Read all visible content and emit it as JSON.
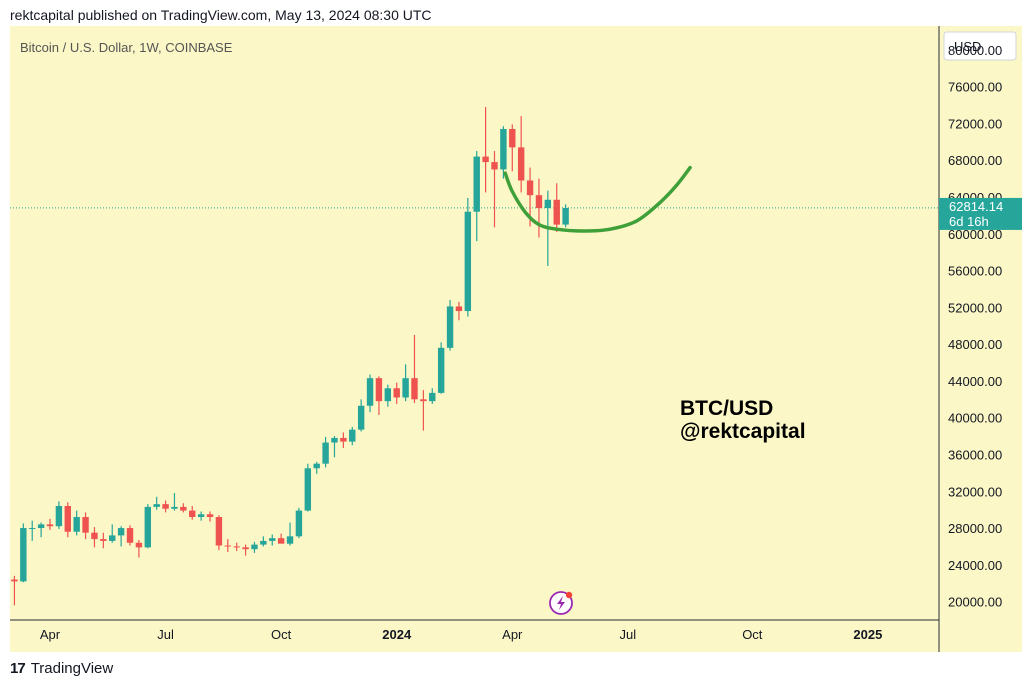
{
  "header": {
    "text": "rektcapital published on TradingView.com, May 13, 2024 08:30 UTC"
  },
  "footer": {
    "brand": "TradingView"
  },
  "colors": {
    "background": "#fbf7c6",
    "up": "#26a69a",
    "down": "#ef5350",
    "curve": "#3fa03a",
    "price_tag": "#26a69a",
    "grid_text": "#131722"
  },
  "chart_data": {
    "type": "candlestick",
    "title": "Bitcoin / U.S. Dollar, 1W, COINBASE",
    "currency_label": "USD",
    "y_ticks": [
      "80000.00",
      "76000.00",
      "72000.00",
      "68000.00",
      "64000.00",
      "60000.00",
      "56000.00",
      "52000.00",
      "48000.00",
      "44000.00",
      "40000.00",
      "36000.00",
      "32000.00",
      "28000.00",
      "24000.00",
      "20000.00"
    ],
    "y_tick_values": [
      80000,
      76000,
      72000,
      68000,
      64000,
      60000,
      56000,
      52000,
      48000,
      44000,
      40000,
      36000,
      32000,
      28000,
      24000,
      20000
    ],
    "ylim": [
      18000,
      82600
    ],
    "x_labels": [
      "Apr",
      "Jul",
      "Oct",
      "2024",
      "Apr",
      "Jul",
      "Oct",
      "2025"
    ],
    "x_label_weeks": [
      4,
      17,
      30,
      43,
      56,
      69,
      83,
      96
    ],
    "week_range": [
      -0.5,
      104
    ],
    "current_price": {
      "label": "62814.14",
      "value": 62814.14,
      "countdown": "6d 16h"
    },
    "annotation": {
      "line1": "BTC/USD",
      "line2": "@rektcapital"
    },
    "projection_curve": [
      {
        "week": 55.2,
        "price": 66600
      },
      {
        "week": 56,
        "price": 64600
      },
      {
        "week": 57.5,
        "price": 62300
      },
      {
        "week": 59,
        "price": 61000
      },
      {
        "week": 61,
        "price": 60500
      },
      {
        "week": 64,
        "price": 60300
      },
      {
        "week": 67,
        "price": 60500
      },
      {
        "week": 70,
        "price": 61400
      },
      {
        "week": 72.5,
        "price": 63300
      },
      {
        "week": 74.5,
        "price": 65300
      },
      {
        "week": 76,
        "price": 67200
      }
    ],
    "candles": [
      {
        "o": 22400,
        "h": 22800,
        "l": 19600,
        "c": 22200
      },
      {
        "o": 22200,
        "h": 28500,
        "l": 22100,
        "c": 28000
      },
      {
        "o": 28000,
        "h": 28800,
        "l": 26600,
        "c": 28000
      },
      {
        "o": 28000,
        "h": 28600,
        "l": 27000,
        "c": 28400
      },
      {
        "o": 28400,
        "h": 29000,
        "l": 27800,
        "c": 28200
      },
      {
        "o": 28200,
        "h": 30900,
        "l": 27900,
        "c": 30400
      },
      {
        "o": 30400,
        "h": 30800,
        "l": 27000,
        "c": 27600
      },
      {
        "o": 27600,
        "h": 29900,
        "l": 27200,
        "c": 29200
      },
      {
        "o": 29200,
        "h": 29700,
        "l": 26800,
        "c": 27500
      },
      {
        "o": 27500,
        "h": 28100,
        "l": 25900,
        "c": 26800
      },
      {
        "o": 26800,
        "h": 27500,
        "l": 25800,
        "c": 26600
      },
      {
        "o": 26600,
        "h": 28400,
        "l": 26400,
        "c": 27200
      },
      {
        "o": 27200,
        "h": 28200,
        "l": 26000,
        "c": 28000
      },
      {
        "o": 28000,
        "h": 28300,
        "l": 26100,
        "c": 26400
      },
      {
        "o": 26400,
        "h": 26700,
        "l": 24800,
        "c": 25900
      },
      {
        "o": 25900,
        "h": 30600,
        "l": 25800,
        "c": 30300
      },
      {
        "o": 30300,
        "h": 31400,
        "l": 30000,
        "c": 30600
      },
      {
        "o": 30600,
        "h": 31000,
        "l": 29700,
        "c": 30100
      },
      {
        "o": 30100,
        "h": 31800,
        "l": 29900,
        "c": 30300
      },
      {
        "o": 30300,
        "h": 30700,
        "l": 29700,
        "c": 29900
      },
      {
        "o": 29900,
        "h": 30400,
        "l": 28900,
        "c": 29200
      },
      {
        "o": 29200,
        "h": 29800,
        "l": 28800,
        "c": 29500
      },
      {
        "o": 29500,
        "h": 29800,
        "l": 28700,
        "c": 29200
      },
      {
        "o": 29200,
        "h": 29400,
        "l": 25600,
        "c": 26100
      },
      {
        "o": 26100,
        "h": 26800,
        "l": 25400,
        "c": 26000
      },
      {
        "o": 26000,
        "h": 26400,
        "l": 25500,
        "c": 25900
      },
      {
        "o": 25900,
        "h": 26200,
        "l": 25000,
        "c": 25700
      },
      {
        "o": 25700,
        "h": 26500,
        "l": 25300,
        "c": 26200
      },
      {
        "o": 26200,
        "h": 27100,
        "l": 26000,
        "c": 26600
      },
      {
        "o": 26600,
        "h": 27300,
        "l": 26100,
        "c": 26900
      },
      {
        "o": 26900,
        "h": 27400,
        "l": 26500,
        "c": 26300
      },
      {
        "o": 26300,
        "h": 28600,
        "l": 26100,
        "c": 27100
      },
      {
        "o": 27100,
        "h": 30200,
        "l": 26900,
        "c": 29900
      },
      {
        "o": 29900,
        "h": 35000,
        "l": 29800,
        "c": 34500
      },
      {
        "o": 34500,
        "h": 35200,
        "l": 33900,
        "c": 35000
      },
      {
        "o": 35000,
        "h": 37900,
        "l": 34600,
        "c": 37300
      },
      {
        "o": 37300,
        "h": 38000,
        "l": 35700,
        "c": 37800
      },
      {
        "o": 37800,
        "h": 38400,
        "l": 36700,
        "c": 37400
      },
      {
        "o": 37400,
        "h": 39000,
        "l": 37000,
        "c": 38700
      },
      {
        "o": 38700,
        "h": 42000,
        "l": 38500,
        "c": 41300
      },
      {
        "o": 41300,
        "h": 44700,
        "l": 40600,
        "c": 44300
      },
      {
        "o": 44300,
        "h": 44500,
        "l": 40300,
        "c": 41800
      },
      {
        "o": 41800,
        "h": 43600,
        "l": 41200,
        "c": 43200
      },
      {
        "o": 43200,
        "h": 43800,
        "l": 41500,
        "c": 42200
      },
      {
        "o": 42200,
        "h": 45800,
        "l": 41800,
        "c": 44300
      },
      {
        "o": 44300,
        "h": 49000,
        "l": 41600,
        "c": 42000
      },
      {
        "o": 42000,
        "h": 43000,
        "l": 38600,
        "c": 41800
      },
      {
        "o": 41800,
        "h": 43200,
        "l": 41500,
        "c": 42700
      },
      {
        "o": 42700,
        "h": 48200,
        "l": 42600,
        "c": 47600
      },
      {
        "o": 47600,
        "h": 52800,
        "l": 47300,
        "c": 52100
      },
      {
        "o": 52100,
        "h": 52600,
        "l": 50600,
        "c": 51600
      },
      {
        "o": 51600,
        "h": 63900,
        "l": 51000,
        "c": 62400
      },
      {
        "o": 62400,
        "h": 69000,
        "l": 59200,
        "c": 68400
      },
      {
        "o": 68400,
        "h": 73800,
        "l": 64500,
        "c": 67800
      },
      {
        "o": 67800,
        "h": 69000,
        "l": 60700,
        "c": 67000
      },
      {
        "o": 67000,
        "h": 71700,
        "l": 66000,
        "c": 71400
      },
      {
        "o": 71400,
        "h": 71900,
        "l": 66800,
        "c": 69400
      },
      {
        "o": 69400,
        "h": 72800,
        "l": 64500,
        "c": 65800
      },
      {
        "o": 65800,
        "h": 67200,
        "l": 60800,
        "c": 64200
      },
      {
        "o": 64200,
        "h": 66000,
        "l": 59600,
        "c": 62800
      },
      {
        "o": 62800,
        "h": 64700,
        "l": 56500,
        "c": 63700
      },
      {
        "o": 63700,
        "h": 65500,
        "l": 60200,
        "c": 61000
      },
      {
        "o": 61000,
        "h": 63200,
        "l": 60700,
        "c": 62814
      }
    ]
  }
}
